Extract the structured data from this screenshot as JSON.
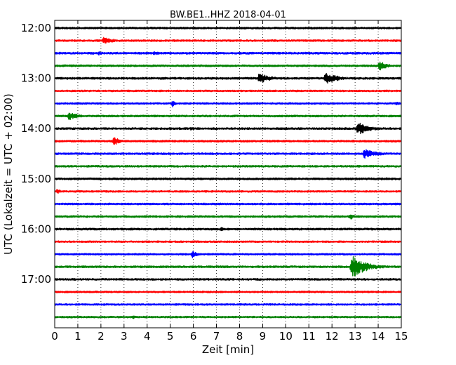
{
  "chart_data": {
    "type": "line",
    "title": "BW.BE1..HHZ 2018-04-01",
    "xlabel": "Zeit  [min]",
    "ylabel": "UTC (Lokalzeit = UTC + 02:00)",
    "xlim": [
      0,
      15
    ],
    "x_ticks": [
      "0",
      "1",
      "2",
      "3",
      "4",
      "5",
      "6",
      "7",
      "8",
      "9",
      "10",
      "11",
      "12",
      "13",
      "14",
      "15"
    ],
    "y_ticks": [
      {
        "label": "12:00",
        "row": 0
      },
      {
        "label": "13:00",
        "row": 4
      },
      {
        "label": "14:00",
        "row": 8
      },
      {
        "label": "15:00",
        "row": 12
      },
      {
        "label": "16:00",
        "row": 16
      },
      {
        "label": "17:00",
        "row": 20
      }
    ],
    "grid": "vertical dotted lines at each minute",
    "trace_interval_min": 15,
    "trace_colors": [
      "#000000",
      "#ff0000",
      "#0000ff",
      "#008000"
    ],
    "traces": [
      {
        "start": "12:00",
        "events": [],
        "noise": 1.3
      },
      {
        "start": "12:15",
        "events": [
          {
            "t": 2.1,
            "amp": 5,
            "dur": 0.45
          }
        ],
        "noise": 1.3
      },
      {
        "start": "12:30",
        "events": [
          {
            "t": 1.9,
            "amp": 3,
            "dur": 0.2
          },
          {
            "t": 4.3,
            "amp": 3,
            "dur": 0.3
          }
        ],
        "noise": 1.4
      },
      {
        "start": "12:45",
        "events": [
          {
            "t": 14.05,
            "amp": 8,
            "dur": 0.3
          }
        ],
        "noise": 1.3
      },
      {
        "start": "13:00",
        "events": [
          {
            "t": 8.85,
            "amp": 8,
            "dur": 0.45
          },
          {
            "t": 11.7,
            "amp": 9,
            "dur": 0.55
          }
        ],
        "noise": 1.4
      },
      {
        "start": "13:15",
        "events": [],
        "noise": 1.2
      },
      {
        "start": "13:30",
        "events": [
          {
            "t": 5.1,
            "amp": 5,
            "dur": 0.15
          },
          {
            "t": 14.8,
            "amp": 3,
            "dur": 0.15
          }
        ],
        "noise": 1.2
      },
      {
        "start": "13:45",
        "events": [
          {
            "t": 0.6,
            "amp": 6,
            "dur": 0.45
          }
        ],
        "noise": 1.3
      },
      {
        "start": "14:00",
        "events": [
          {
            "t": 5.9,
            "amp": 3,
            "dur": 0.1
          },
          {
            "t": 13.1,
            "amp": 10,
            "dur": 0.5
          }
        ],
        "noise": 1.4
      },
      {
        "start": "14:15",
        "events": [
          {
            "t": 2.55,
            "amp": 7,
            "dur": 0.25
          }
        ],
        "noise": 1.3
      },
      {
        "start": "14:30",
        "events": [
          {
            "t": 13.4,
            "amp": 7,
            "dur": 0.55
          }
        ],
        "noise": 1.3
      },
      {
        "start": "14:45",
        "events": [],
        "noise": 1.3
      },
      {
        "start": "15:00",
        "events": [],
        "noise": 1.4
      },
      {
        "start": "15:15",
        "events": [
          {
            "t": 0.1,
            "amp": 4,
            "dur": 0.15
          }
        ],
        "noise": 1.2
      },
      {
        "start": "15:30",
        "events": [],
        "noise": 1.3
      },
      {
        "start": "15:45",
        "events": [
          {
            "t": 12.8,
            "amp": 5,
            "dur": 0.15
          }
        ],
        "noise": 1.3
      },
      {
        "start": "16:00",
        "events": [
          {
            "t": 7.2,
            "amp": 3,
            "dur": 0.2
          }
        ],
        "noise": 1.4
      },
      {
        "start": "16:15",
        "events": [],
        "noise": 1.2
      },
      {
        "start": "16:30",
        "events": [
          {
            "t": 5.95,
            "amp": 6,
            "dur": 0.2
          }
        ],
        "noise": 1.2
      },
      {
        "start": "16:45",
        "events": [
          {
            "t": 12.85,
            "amp": 17,
            "dur": 0.6
          }
        ],
        "noise": 1.4
      },
      {
        "start": "17:00",
        "events": [
          {
            "t": 0.8,
            "amp": 3,
            "dur": 0.15
          }
        ],
        "noise": 1.3
      },
      {
        "start": "17:15",
        "events": [],
        "noise": 1.2
      },
      {
        "start": "17:30",
        "events": [],
        "noise": 1.2
      },
      {
        "start": "17:45",
        "events": [
          {
            "t": 3.4,
            "amp": 3,
            "dur": 0.1
          }
        ],
        "noise": 1.2
      }
    ]
  }
}
